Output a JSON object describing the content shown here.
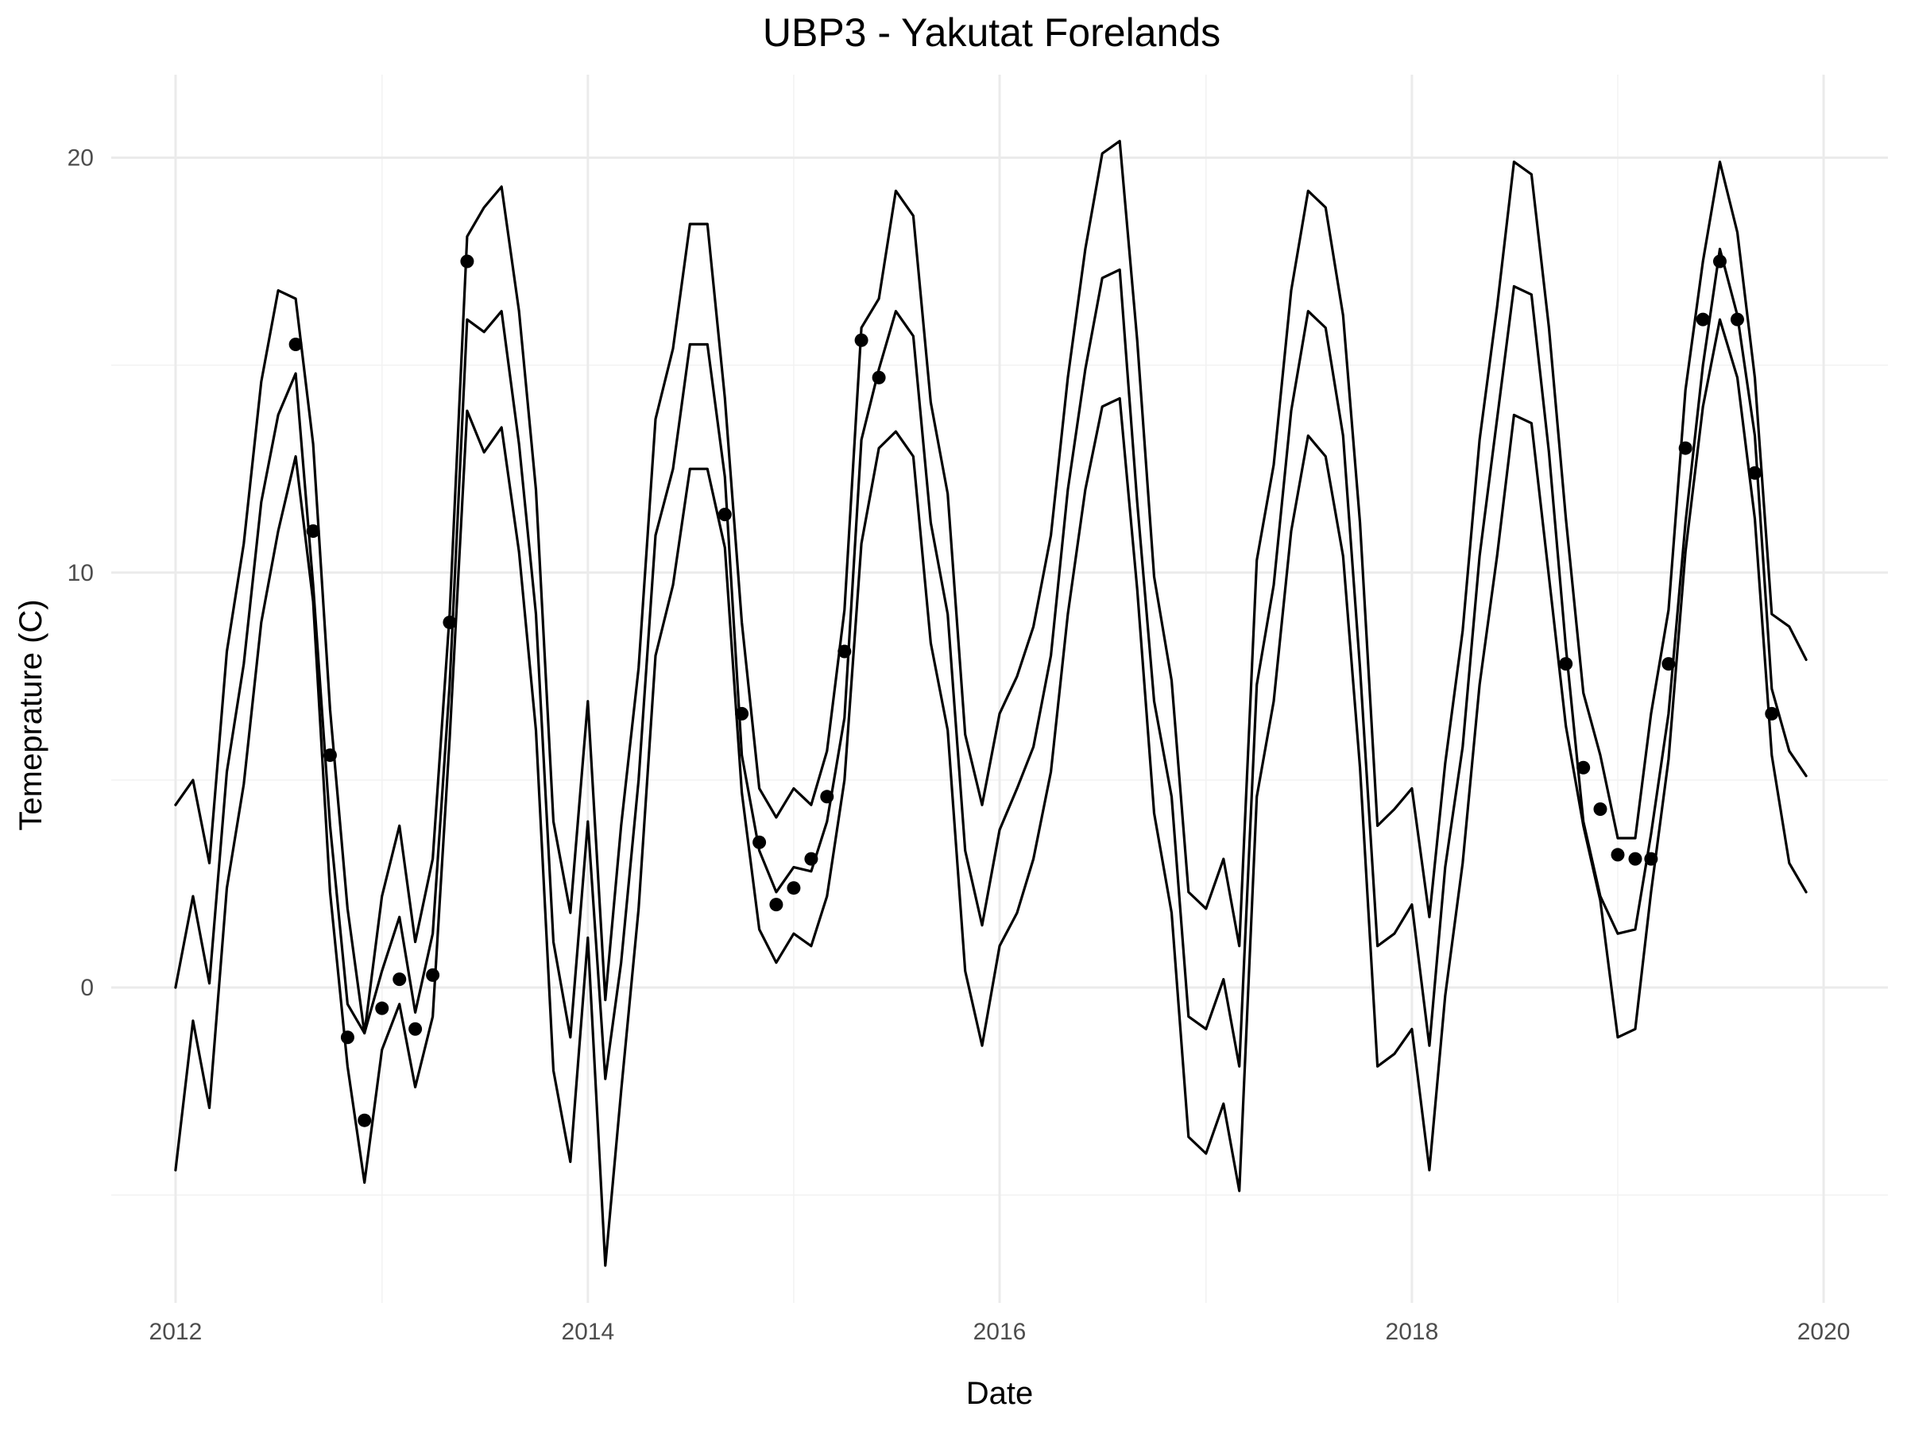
{
  "chart_data": {
    "type": "line",
    "title": "UBP3 - Yakutat Forelands",
    "xlabel": "Date",
    "ylabel": "Temeprature (C)",
    "x_axis": {
      "scale": "time",
      "range": [
        "2011-09-09",
        "2020-04-24"
      ],
      "ticks": [
        "2012",
        "2014",
        "2016",
        "2018",
        "2020"
      ]
    },
    "y_axis": {
      "range": [
        -7.6,
        22.0
      ],
      "ticks": [
        0,
        10,
        20
      ],
      "tick_labels": [
        "0",
        "10",
        "20"
      ]
    },
    "grid": true,
    "legend": "none",
    "x": [
      "2012-01",
      "2012-02",
      "2012-03",
      "2012-04",
      "2012-05",
      "2012-06",
      "2012-07",
      "2012-08",
      "2012-09",
      "2012-10",
      "2012-11",
      "2012-12",
      "2013-01",
      "2013-02",
      "2013-03",
      "2013-04",
      "2013-05",
      "2013-06",
      "2013-07",
      "2013-08",
      "2013-09",
      "2013-10",
      "2013-11",
      "2013-12",
      "2014-01",
      "2014-02",
      "2014-03",
      "2014-04",
      "2014-05",
      "2014-06",
      "2014-07",
      "2014-08",
      "2014-09",
      "2014-10",
      "2014-11",
      "2014-12",
      "2015-01",
      "2015-02",
      "2015-03",
      "2015-04",
      "2015-05",
      "2015-06",
      "2015-07",
      "2015-08",
      "2015-09",
      "2015-10",
      "2015-11",
      "2015-12",
      "2016-01",
      "2016-02",
      "2016-03",
      "2016-04",
      "2016-05",
      "2016-06",
      "2016-07",
      "2016-08",
      "2016-09",
      "2016-10",
      "2016-11",
      "2016-12",
      "2017-01",
      "2017-02",
      "2017-03",
      "2017-04",
      "2017-05",
      "2017-06",
      "2017-07",
      "2017-08",
      "2017-09",
      "2017-10",
      "2017-11",
      "2017-12",
      "2018-01",
      "2018-02",
      "2018-03",
      "2018-04",
      "2018-05",
      "2018-06",
      "2018-07",
      "2018-08",
      "2018-09",
      "2018-10",
      "2018-11",
      "2018-12",
      "2019-01",
      "2019-02",
      "2019-03",
      "2019-04",
      "2019-05",
      "2019-06",
      "2019-07",
      "2019-08",
      "2019-09",
      "2019-10",
      "2019-11",
      "2019-12"
    ],
    "series": [
      {
        "values": [
          4.4,
          5.0,
          3.0,
          8.1,
          10.7,
          14.6,
          16.8,
          16.6,
          13.1,
          6.7,
          1.9,
          -1.1,
          2.2,
          3.9,
          1.1,
          3.1,
          9.0,
          18.1,
          18.8,
          19.3,
          16.3,
          12.0,
          4.0,
          1.8,
          6.9,
          -0.3,
          3.9,
          7.7,
          13.7,
          15.4,
          18.4,
          18.4,
          14.2,
          8.8,
          4.8,
          4.1,
          4.8,
          4.4,
          5.7,
          9.1,
          15.9,
          16.6,
          19.2,
          18.6,
          14.1,
          11.9,
          6.1,
          4.4,
          6.6,
          7.5,
          8.7,
          10.9,
          14.7,
          17.8,
          20.1,
          20.4,
          15.6,
          9.9,
          7.4,
          2.3,
          1.9,
          3.1,
          1.0,
          10.3,
          12.6,
          16.8,
          19.2,
          18.8,
          16.2,
          11.2,
          3.9,
          4.3,
          4.8,
          1.7,
          5.4,
          8.6,
          13.2,
          16.4,
          19.9,
          19.6,
          15.9,
          11.3,
          7.1,
          5.6,
          3.6,
          3.6,
          6.6,
          9.1,
          14.4,
          17.5,
          19.9,
          18.2,
          14.7,
          9.0,
          8.7,
          7.9
        ]
      },
      {
        "values": [
          0.0,
          2.2,
          0.1,
          5.2,
          7.8,
          11.7,
          13.8,
          14.8,
          9.7,
          3.9,
          -0.4,
          -1.1,
          0.4,
          1.7,
          -0.6,
          1.3,
          7.3,
          16.1,
          15.8,
          16.3,
          13.1,
          9.0,
          1.1,
          -1.2,
          4.0,
          -2.2,
          0.6,
          5.0,
          10.9,
          12.5,
          15.5,
          15.5,
          12.3,
          5.6,
          3.3,
          2.3,
          2.9,
          2.8,
          4.0,
          6.5,
          13.2,
          14.9,
          16.3,
          15.7,
          11.2,
          9.0,
          3.3,
          1.5,
          3.8,
          4.8,
          5.8,
          8.0,
          12.0,
          14.9,
          17.1,
          17.3,
          11.7,
          6.9,
          4.6,
          -0.7,
          -1.0,
          0.2,
          -1.9,
          7.3,
          9.7,
          13.9,
          16.3,
          15.9,
          13.3,
          7.7,
          1.0,
          1.3,
          2.0,
          -1.4,
          2.9,
          5.8,
          10.4,
          13.7,
          16.9,
          16.7,
          12.9,
          8.2,
          4.0,
          2.2,
          1.3,
          1.4,
          3.7,
          6.6,
          11.2,
          15.0,
          17.8,
          16.2,
          13.3,
          7.2,
          5.7,
          5.1
        ]
      },
      {
        "values": [
          -4.4,
          -0.8,
          -2.9,
          2.4,
          4.9,
          8.8,
          11.0,
          12.8,
          9.3,
          2.3,
          -1.9,
          -4.7,
          -1.5,
          -0.4,
          -2.4,
          -0.7,
          6.0,
          13.9,
          12.9,
          13.5,
          10.5,
          6.2,
          -2.0,
          -4.2,
          1.2,
          -6.7,
          -2.5,
          1.9,
          8.0,
          9.7,
          12.5,
          12.5,
          10.6,
          4.7,
          1.4,
          0.6,
          1.3,
          1.0,
          2.2,
          5.0,
          10.7,
          13.0,
          13.4,
          12.8,
          8.3,
          6.2,
          0.4,
          -1.4,
          1.0,
          1.8,
          3.1,
          5.2,
          9.0,
          12.0,
          14.0,
          14.2,
          9.6,
          4.2,
          1.8,
          -3.6,
          -4.0,
          -2.8,
          -4.9,
          4.6,
          6.9,
          11.0,
          13.3,
          12.8,
          10.4,
          5.3,
          -1.9,
          -1.6,
          -1.0,
          -4.4,
          -0.2,
          3.0,
          7.3,
          10.4,
          13.8,
          13.6,
          9.9,
          6.3,
          3.9,
          2.1,
          -1.2,
          -1.0,
          2.3,
          5.5,
          10.5,
          14.0,
          16.1,
          14.7,
          11.3,
          5.6,
          3.0,
          2.3
        ]
      }
    ],
    "observed_points": [
      {
        "x": "2012-08",
        "y": 15.5
      },
      {
        "x": "2012-09",
        "y": 11.0
      },
      {
        "x": "2012-10",
        "y": 5.6
      },
      {
        "x": "2012-11",
        "y": -1.2
      },
      {
        "x": "2012-12",
        "y": -3.2
      },
      {
        "x": "2013-01",
        "y": -0.5
      },
      {
        "x": "2013-02",
        "y": 0.2
      },
      {
        "x": "2013-03",
        "y": -1.0
      },
      {
        "x": "2013-04",
        "y": 0.3
      },
      {
        "x": "2013-05",
        "y": 8.8
      },
      {
        "x": "2013-06",
        "y": 17.5
      },
      {
        "x": "2014-09",
        "y": 11.4
      },
      {
        "x": "2014-10",
        "y": 6.6
      },
      {
        "x": "2014-11",
        "y": 3.5
      },
      {
        "x": "2014-12",
        "y": 2.0
      },
      {
        "x": "2015-01",
        "y": 2.4
      },
      {
        "x": "2015-02",
        "y": 3.1
      },
      {
        "x": "2015-03",
        "y": 4.6
      },
      {
        "x": "2015-04",
        "y": 8.1
      },
      {
        "x": "2015-05",
        "y": 15.6
      },
      {
        "x": "2015-06",
        "y": 14.7
      },
      {
        "x": "2018-10",
        "y": 7.8
      },
      {
        "x": "2018-11",
        "y": 5.3
      },
      {
        "x": "2018-12",
        "y": 4.3
      },
      {
        "x": "2019-01",
        "y": 3.2
      },
      {
        "x": "2019-02",
        "y": 3.1
      },
      {
        "x": "2019-03",
        "y": 3.1
      },
      {
        "x": "2019-04",
        "y": 7.8
      },
      {
        "x": "2019-05",
        "y": 13.0
      },
      {
        "x": "2019-06",
        "y": 16.1
      },
      {
        "x": "2019-07",
        "y": 17.5
      },
      {
        "x": "2019-08",
        "y": 16.1
      },
      {
        "x": "2019-09",
        "y": 12.4
      },
      {
        "x": "2019-10",
        "y": 6.6
      }
    ]
  }
}
